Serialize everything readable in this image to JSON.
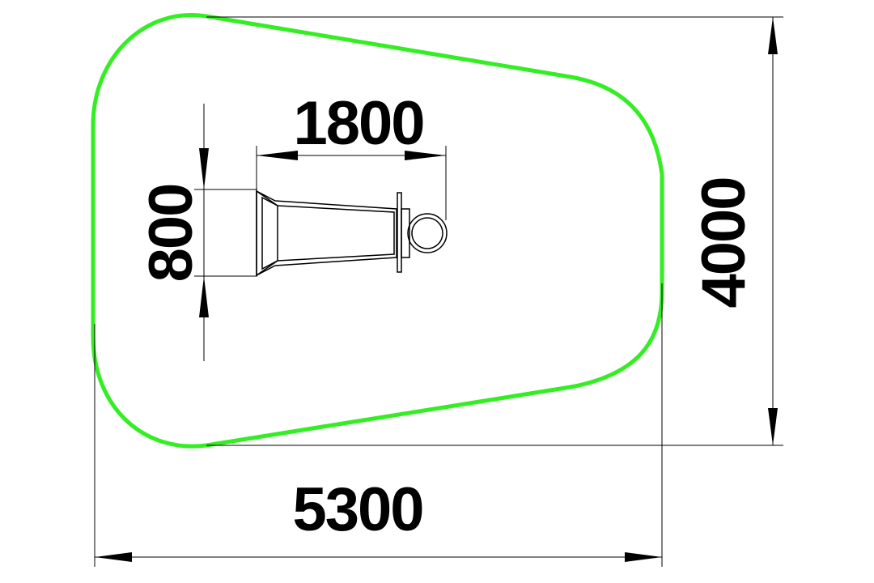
{
  "colors": {
    "safety_zone": "#33ee22",
    "lines": "#000000",
    "background": "#ffffff"
  },
  "dimensions": {
    "overall_width": "5300",
    "overall_depth": "4000",
    "equipment_length": "1800",
    "equipment_width": "800"
  }
}
